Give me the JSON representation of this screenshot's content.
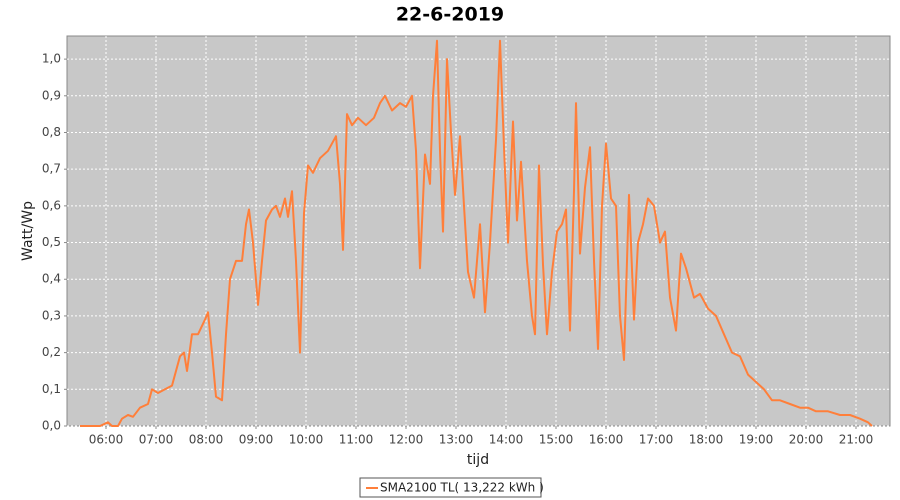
{
  "chart_data": {
    "type": "line",
    "title": "22-6-2019",
    "xlabel": "tijd",
    "ylabel": "Watt/Wp",
    "x": [
      5.48,
      5.88,
      6.04,
      6.12,
      6.24,
      6.32,
      6.44,
      6.54,
      6.68,
      6.84,
      6.92,
      7.04,
      7.18,
      7.32,
      7.48,
      7.56,
      7.62,
      7.72,
      7.84,
      7.98,
      8.04,
      8.12,
      8.2,
      8.32,
      8.4,
      8.48,
      8.6,
      8.72,
      8.8,
      8.86,
      8.94,
      9.04,
      9.12,
      9.2,
      9.32,
      9.4,
      9.48,
      9.58,
      9.64,
      9.72,
      9.8,
      9.88,
      9.96,
      10.04,
      10.14,
      10.28,
      10.44,
      10.6,
      10.68,
      10.74,
      10.82,
      10.92,
      11.04,
      11.2,
      11.36,
      11.48,
      11.58,
      11.72,
      11.88,
      12,
      12.12,
      12.2,
      12.28,
      12.38,
      12.48,
      12.54,
      12.62,
      12.68,
      12.74,
      12.82,
      12.9,
      12.98,
      13.08,
      13.16,
      13.24,
      13.36,
      13.48,
      13.58,
      13.68,
      13.8,
      13.88,
      13.96,
      14.04,
      14.14,
      14.22,
      14.3,
      14.42,
      14.52,
      14.58,
      14.66,
      14.74,
      14.82,
      14.92,
      15.02,
      15.12,
      15.2,
      15.28,
      15.36,
      15.4,
      15.48,
      15.58,
      15.68,
      15.76,
      15.84,
      15.92,
      16,
      16.1,
      16.2,
      16.28,
      16.36,
      16.46,
      16.56,
      16.64,
      16.74,
      16.84,
      16.96,
      17.08,
      17.18,
      17.28,
      17.4,
      17.5,
      17.6,
      17.76,
      17.88,
      18.04,
      18.2,
      18.36,
      18.52,
      18.68,
      18.84,
      19,
      19.16,
      19.32,
      19.48,
      19.68,
      19.88,
      20.04,
      20.2,
      20.44,
      20.68,
      20.88,
      21.08,
      21.24,
      21.32
    ],
    "series": [
      {
        "name": "SMA2100 TL( 13,222 kWh )",
        "color": "#ff7f3a",
        "values": [
          0,
          0,
          0.01,
          0,
          0,
          0.02,
          0.03,
          0.025,
          0.05,
          0.06,
          0.1,
          0.09,
          0.1,
          0.11,
          0.19,
          0.2,
          0.15,
          0.25,
          0.25,
          0.29,
          0.31,
          0.2,
          0.08,
          0.07,
          0.25,
          0.4,
          0.45,
          0.45,
          0.55,
          0.59,
          0.5,
          0.33,
          0.45,
          0.56,
          0.59,
          0.6,
          0.57,
          0.62,
          0.57,
          0.64,
          0.45,
          0.2,
          0.58,
          0.71,
          0.69,
          0.73,
          0.75,
          0.79,
          0.66,
          0.48,
          0.85,
          0.82,
          0.84,
          0.82,
          0.84,
          0.88,
          0.9,
          0.86,
          0.88,
          0.87,
          0.9,
          0.75,
          0.43,
          0.74,
          0.66,
          0.9,
          1.05,
          0.75,
          0.53,
          1.0,
          0.8,
          0.63,
          0.79,
          0.6,
          0.42,
          0.35,
          0.55,
          0.31,
          0.5,
          0.78,
          1.05,
          0.76,
          0.5,
          0.83,
          0.56,
          0.72,
          0.45,
          0.3,
          0.25,
          0.71,
          0.44,
          0.25,
          0.42,
          0.53,
          0.55,
          0.59,
          0.26,
          0.64,
          0.88,
          0.47,
          0.65,
          0.76,
          0.45,
          0.21,
          0.6,
          0.77,
          0.62,
          0.6,
          0.3,
          0.18,
          0.63,
          0.29,
          0.5,
          0.55,
          0.62,
          0.6,
          0.5,
          0.53,
          0.35,
          0.26,
          0.47,
          0.43,
          0.35,
          0.36,
          0.32,
          0.3,
          0.25,
          0.2,
          0.19,
          0.14,
          0.12,
          0.1,
          0.07,
          0.07,
          0.06,
          0.05,
          0.05,
          0.04,
          0.04,
          0.03,
          0.03,
          0.02,
          0.01,
          0
        ]
      }
    ],
    "xlim": [
      5.22,
      21.68
    ],
    "xticks": [
      {
        "value": 6,
        "label": "06:00"
      },
      {
        "value": 7,
        "label": "07:00"
      },
      {
        "value": 8,
        "label": "08:00"
      },
      {
        "value": 9,
        "label": "09:00"
      },
      {
        "value": 10,
        "label": "10:00"
      },
      {
        "value": 11,
        "label": "11:00"
      },
      {
        "value": 12,
        "label": "12:00"
      },
      {
        "value": 13,
        "label": "13:00"
      },
      {
        "value": 14,
        "label": "14:00"
      },
      {
        "value": 15,
        "label": "15:00"
      },
      {
        "value": 16,
        "label": "16:00"
      },
      {
        "value": 17,
        "label": "17:00"
      },
      {
        "value": 18,
        "label": "18:00"
      },
      {
        "value": 19,
        "label": "19:00"
      },
      {
        "value": 20,
        "label": "20:00"
      },
      {
        "value": 21,
        "label": "21:00"
      }
    ],
    "ylim": [
      0,
      1.063
    ],
    "yticks": [
      {
        "value": 0,
        "label": "0,0"
      },
      {
        "value": 0.1,
        "label": "0,1"
      },
      {
        "value": 0.2,
        "label": "0,2"
      },
      {
        "value": 0.3,
        "label": "0,3"
      },
      {
        "value": 0.4,
        "label": "0,4"
      },
      {
        "value": 0.5,
        "label": "0,5"
      },
      {
        "value": 0.6,
        "label": "0,6"
      },
      {
        "value": 0.7,
        "label": "0,7"
      },
      {
        "value": 0.8,
        "label": "0,8"
      },
      {
        "value": 0.9,
        "label": "0,9"
      },
      {
        "value": 1,
        "label": "1,0"
      }
    ],
    "grid": true,
    "background": "#c8c8c8",
    "legend": "bottom"
  }
}
